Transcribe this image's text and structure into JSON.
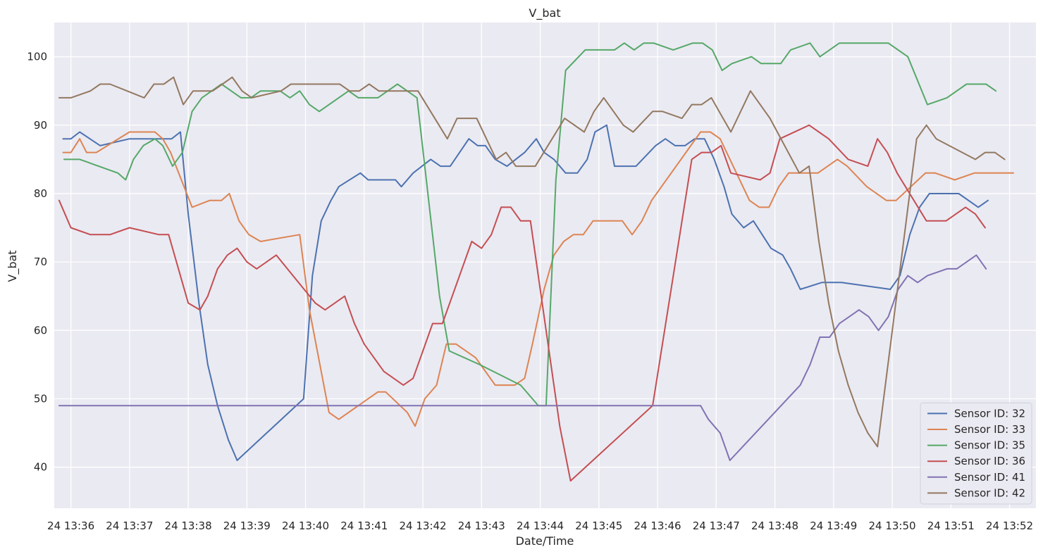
{
  "chart_data": {
    "type": "line",
    "title": "V_bat",
    "xlabel": "Date/Time",
    "ylabel": "V_bat",
    "ylim": [
      34,
      105
    ],
    "xlim": [
      "24 13:35:43",
      "24 13:52:27"
    ],
    "yticks": [
      40,
      50,
      60,
      70,
      80,
      90,
      100
    ],
    "xticks": [
      "24 13:36",
      "24 13:37",
      "24 13:38",
      "24 13:39",
      "24 13:40",
      "24 13:41",
      "24 13:42",
      "24 13:43",
      "24 13:44",
      "24 13:45",
      "24 13:46",
      "24 13:47",
      "24 13:48",
      "24 13:49",
      "24 13:50",
      "24 13:51",
      "24 13:52"
    ],
    "xtick_times": [
      "24 13:36:00",
      "24 13:37:00",
      "24 13:38:00",
      "24 13:39:00",
      "24 13:40:00",
      "24 13:41:00",
      "24 13:42:00",
      "24 13:43:00",
      "24 13:44:00",
      "24 13:45:00",
      "24 13:46:00",
      "24 13:47:00",
      "24 13:48:00",
      "24 13:49:00",
      "24 13:50:00",
      "24 13:51:00",
      "24 13:52:00"
    ],
    "grid": true,
    "background": "#EAEAF2",
    "legend_position": "lower right",
    "series": [
      {
        "name": "Sensor ID: 32",
        "color": "#4C72B0",
        "x": [
          "24 13:35:52",
          "24 13:36:00",
          "24 13:36:09",
          "24 13:36:30",
          "24 13:37:00",
          "24 13:37:30",
          "24 13:37:43",
          "24 13:37:52",
          "24 13:38:00",
          "24 13:38:11",
          "24 13:38:20",
          "24 13:38:30",
          "24 13:38:41",
          "24 13:38:50",
          "24 13:39:58",
          "24 13:40:07",
          "24 13:40:16",
          "24 13:40:26",
          "24 13:40:34",
          "24 13:40:56",
          "24 13:41:04",
          "24 13:41:25",
          "24 13:41:32",
          "24 13:41:38",
          "24 13:41:50",
          "24 13:42:08",
          "24 13:42:18",
          "24 13:42:28",
          "24 13:42:47",
          "24 13:42:56",
          "24 13:43:04",
          "24 13:43:14",
          "24 13:43:26",
          "24 13:43:44",
          "24 13:43:56",
          "24 13:44:04",
          "24 13:44:14",
          "24 13:44:26",
          "24 13:44:38",
          "24 13:44:48",
          "24 13:44:56",
          "24 13:45:08",
          "24 13:45:16",
          "24 13:45:38",
          "24 13:45:58",
          "24 13:46:08",
          "24 13:46:18",
          "24 13:46:28",
          "24 13:46:38",
          "24 13:46:48",
          "24 13:46:58",
          "24 13:47:08",
          "24 13:47:16",
          "24 13:47:28",
          "24 13:47:38",
          "24 13:47:56",
          "24 13:48:08",
          "24 13:48:16",
          "24 13:48:26",
          "24 13:48:48",
          "24 13:49:08",
          "24 13:49:58",
          "24 13:50:08",
          "24 13:50:18",
          "24 13:50:28",
          "24 13:50:38",
          "24 13:51:08",
          "24 13:51:28",
          "24 13:51:38"
        ],
        "y": [
          88,
          88,
          89,
          87,
          88,
          88,
          88,
          89,
          77,
          64,
          55,
          49,
          44,
          41,
          50,
          68,
          76,
          79,
          81,
          83,
          82,
          82,
          82,
          81,
          83,
          85,
          84,
          84,
          88,
          87,
          87,
          85,
          84,
          86,
          88,
          86,
          85,
          83,
          83,
          85,
          89,
          90,
          84,
          84,
          87,
          88,
          87,
          87,
          88,
          88,
          85,
          81,
          77,
          75,
          76,
          72,
          71,
          69,
          66,
          67,
          67,
          66,
          68,
          74,
          78,
          80,
          80,
          78,
          79
        ]
      },
      {
        "name": "Sensor ID: 33",
        "color": "#DD8452",
        "x": [
          "24 13:35:52",
          "24 13:36:00",
          "24 13:36:09",
          "24 13:36:16",
          "24 13:36:26",
          "24 13:37:00",
          "24 13:37:26",
          "24 13:37:34",
          "24 13:37:42",
          "24 13:38:04",
          "24 13:38:22",
          "24 13:38:34",
          "24 13:38:42",
          "24 13:38:52",
          "24 13:39:02",
          "24 13:39:14",
          "24 13:39:54",
          "24 13:40:04",
          "24 13:40:24",
          "24 13:40:34",
          "24 13:41:14",
          "24 13:41:22",
          "24 13:41:44",
          "24 13:41:52",
          "24 13:42:02",
          "24 13:42:14",
          "24 13:42:24",
          "24 13:42:34",
          "24 13:42:54",
          "24 13:43:14",
          "24 13:43:34",
          "24 13:43:44",
          "24 13:43:52",
          "24 13:44:04",
          "24 13:44:14",
          "24 13:44:24",
          "24 13:44:34",
          "24 13:44:44",
          "24 13:44:54",
          "24 13:45:24",
          "24 13:45:34",
          "24 13:45:44",
          "24 13:45:54",
          "24 13:46:44",
          "24 13:46:54",
          "24 13:47:04",
          "24 13:47:34",
          "24 13:47:44",
          "24 13:47:54",
          "24 13:48:04",
          "24 13:48:14",
          "24 13:48:44",
          "24 13:48:54",
          "24 13:49:04",
          "24 13:49:14",
          "24 13:49:34",
          "24 13:49:54",
          "24 13:50:04",
          "24 13:50:34",
          "24 13:50:44",
          "24 13:51:04",
          "24 13:51:24",
          "24 13:51:44",
          "24 13:52:04"
        ],
        "y": [
          86,
          86,
          88,
          86,
          86,
          89,
          89,
          88,
          86,
          78,
          79,
          79,
          80,
          76,
          74,
          73,
          74,
          63,
          48,
          47,
          51,
          51,
          48,
          46,
          50,
          52,
          58,
          58,
          56,
          52,
          52,
          53,
          58,
          66,
          71,
          73,
          74,
          74,
          76,
          76,
          74,
          76,
          79,
          89,
          89,
          88,
          79,
          78,
          78,
          81,
          83,
          83,
          84,
          85,
          84,
          81,
          79,
          79,
          83,
          83,
          82,
          83,
          83,
          83
        ]
      },
      {
        "name": "Sensor ID: 35",
        "color": "#55A868",
        "x": [
          "24 13:35:53",
          "24 13:36:09",
          "24 13:36:48",
          "24 13:36:56",
          "24 13:37:04",
          "24 13:37:14",
          "24 13:37:26",
          "24 13:37:34",
          "24 13:37:44",
          "24 13:37:54",
          "24 13:38:04",
          "24 13:38:14",
          "24 13:38:24",
          "24 13:38:34",
          "24 13:38:54",
          "24 13:39:04",
          "24 13:39:14",
          "24 13:39:34",
          "24 13:39:44",
          "24 13:39:54",
          "24 13:40:04",
          "24 13:40:14",
          "24 13:40:34",
          "24 13:40:44",
          "24 13:40:54",
          "24 13:41:14",
          "24 13:41:34",
          "24 13:41:54",
          "24 13:42:17",
          "24 13:42:27",
          "24 13:42:58",
          "24 13:43:40",
          "24 13:43:58",
          "24 13:44:06",
          "24 13:44:16",
          "24 13:44:26",
          "24 13:44:46",
          "24 13:45:16",
          "24 13:45:26",
          "24 13:45:36",
          "24 13:45:46",
          "24 13:45:56",
          "24 13:46:16",
          "24 13:46:36",
          "24 13:46:46",
          "24 13:46:56",
          "24 13:47:06",
          "24 13:47:16",
          "24 13:47:36",
          "24 13:47:46",
          "24 13:48:06",
          "24 13:48:16",
          "24 13:48:36",
          "24 13:48:46",
          "24 13:48:56",
          "24 13:49:06",
          "24 13:49:26",
          "24 13:49:56",
          "24 13:50:16",
          "24 13:50:36",
          "24 13:50:56",
          "24 13:51:16",
          "24 13:51:36",
          "24 13:51:46"
        ],
        "y": [
          85,
          85,
          83,
          82,
          85,
          87,
          88,
          87,
          84,
          86,
          92,
          94,
          95,
          96,
          94,
          94,
          95,
          95,
          94,
          95,
          93,
          92,
          94,
          95,
          94,
          94,
          96,
          94,
          65,
          57,
          55,
          52,
          49,
          49,
          82,
          98,
          101,
          101,
          102,
          101,
          102,
          102,
          101,
          102,
          102,
          101,
          98,
          99,
          100,
          99,
          99,
          101,
          102,
          100,
          101,
          102,
          102,
          102,
          100,
          93,
          94,
          96,
          96,
          95
        ]
      },
      {
        "name": "Sensor ID: 36",
        "color": "#C44E52",
        "x": [
          "24 13:35:48",
          "24 13:36:00",
          "24 13:36:20",
          "24 13:36:40",
          "24 13:37:00",
          "24 13:37:30",
          "24 13:37:40",
          "24 13:38:00",
          "24 13:38:12",
          "24 13:38:20",
          "24 13:38:30",
          "24 13:38:40",
          "24 13:38:50",
          "24 13:39:00",
          "24 13:39:10",
          "24 13:39:30",
          "24 13:40:10",
          "24 13:40:20",
          "24 13:40:40",
          "24 13:40:50",
          "24 13:41:00",
          "24 13:41:10",
          "24 13:41:20",
          "24 13:41:40",
          "24 13:41:50",
          "24 13:42:00",
          "24 13:42:10",
          "24 13:42:20",
          "24 13:42:30",
          "24 13:42:50",
          "24 13:43:00",
          "24 13:43:10",
          "24 13:43:20",
          "24 13:43:30",
          "24 13:43:40",
          "24 13:43:50",
          "24 13:44:20",
          "24 13:44:31",
          "24 13:45:55",
          "24 13:46:35",
          "24 13:46:45",
          "24 13:46:55",
          "24 13:47:05",
          "24 13:47:15",
          "24 13:47:45",
          "24 13:47:55",
          "24 13:48:05",
          "24 13:48:35",
          "24 13:48:45",
          "24 13:48:55",
          "24 13:49:15",
          "24 13:49:35",
          "24 13:49:45",
          "24 13:49:55",
          "24 13:50:05",
          "24 13:50:35",
          "24 13:50:55",
          "24 13:51:15",
          "24 13:51:25",
          "24 13:51:35"
        ],
        "y": [
          79,
          75,
          74,
          74,
          75,
          74,
          74,
          64,
          63,
          65,
          69,
          71,
          72,
          70,
          69,
          71,
          64,
          63,
          65,
          61,
          58,
          56,
          54,
          52,
          53,
          57,
          61,
          61,
          65,
          73,
          72,
          74,
          78,
          78,
          76,
          76,
          46,
          38,
          49,
          85,
          86,
          86,
          87,
          83,
          82,
          83,
          88,
          90,
          89,
          88,
          85,
          84,
          88,
          86,
          83,
          76,
          76,
          78,
          77,
          75
        ]
      },
      {
        "name": "Sensor ID: 41",
        "color": "#8172B3",
        "x": [
          "24 13:35:48",
          "24 13:46:44",
          "24 13:46:52",
          "24 13:47:04",
          "24 13:47:14",
          "24 13:48:26",
          "24 13:48:36",
          "24 13:48:46",
          "24 13:48:56",
          "24 13:49:06",
          "24 13:49:16",
          "24 13:49:26",
          "24 13:49:36",
          "24 13:49:46",
          "24 13:49:56",
          "24 13:50:06",
          "24 13:50:16",
          "24 13:50:26",
          "24 13:50:36",
          "24 13:50:56",
          "24 13:51:06",
          "24 13:51:26",
          "24 13:51:36"
        ],
        "y": [
          49,
          49,
          47,
          45,
          41,
          52,
          55,
          59,
          59,
          61,
          62,
          63,
          62,
          60,
          62,
          66,
          68,
          67,
          68,
          69,
          69,
          71,
          69
        ]
      },
      {
        "name": "Sensor ID: 42",
        "color": "#937860",
        "x": [
          "24 13:35:48",
          "24 13:36:00",
          "24 13:36:20",
          "24 13:36:30",
          "24 13:36:40",
          "24 13:37:15",
          "24 13:37:25",
          "24 13:37:35",
          "24 13:37:45",
          "24 13:37:55",
          "24 13:38:05",
          "24 13:38:25",
          "24 13:38:35",
          "24 13:38:45",
          "24 13:38:55",
          "24 13:39:05",
          "24 13:39:35",
          "24 13:39:45",
          "24 13:40:35",
          "24 13:40:45",
          "24 13:40:55",
          "24 13:41:05",
          "24 13:41:15",
          "24 13:41:55",
          "24 13:42:25",
          "24 13:42:35",
          "24 13:42:55",
          "24 13:43:15",
          "24 13:43:25",
          "24 13:43:35",
          "24 13:43:55",
          "24 13:44:25",
          "24 13:44:45",
          "24 13:44:55",
          "24 13:45:05",
          "24 13:45:25",
          "24 13:45:35",
          "24 13:45:55",
          "24 13:46:05",
          "24 13:46:25",
          "24 13:46:35",
          "24 13:46:45",
          "24 13:46:55",
          "24 13:47:15",
          "24 13:47:25",
          "24 13:47:35",
          "24 13:47:55",
          "24 13:48:25",
          "24 13:48:35",
          "24 13:48:45",
          "24 13:48:55",
          "24 13:49:05",
          "24 13:49:15",
          "24 13:49:25",
          "24 13:49:35",
          "24 13:49:45",
          "24 13:50:25",
          "24 13:50:35",
          "24 13:50:45",
          "24 13:51:25",
          "24 13:51:35",
          "24 13:51:45",
          "24 13:51:55"
        ],
        "y": [
          94,
          94,
          95,
          96,
          96,
          94,
          96,
          96,
          97,
          93,
          95,
          95,
          96,
          97,
          95,
          94,
          95,
          96,
          96,
          95,
          95,
          96,
          95,
          95,
          88,
          91,
          91,
          85,
          86,
          84,
          84,
          91,
          89,
          92,
          94,
          90,
          89,
          92,
          92,
          91,
          93,
          93,
          94,
          89,
          92,
          95,
          91,
          83,
          84,
          73,
          64,
          57,
          52,
          48,
          45,
          43,
          88,
          90,
          88,
          85,
          86,
          86,
          85
        ]
      }
    ]
  }
}
